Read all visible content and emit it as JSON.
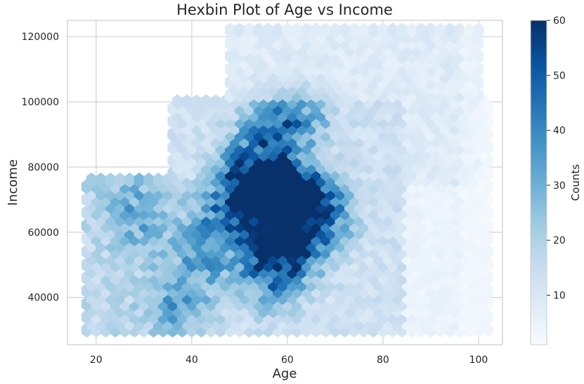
{
  "chart_data": {
    "type": "heatmap",
    "subtype": "hexbin",
    "title": "Hexbin Plot of Age vs Income",
    "xlabel": "Age",
    "ylabel": "Income",
    "xlim": [
      14,
      105
    ],
    "ylim": [
      25500,
      125000
    ],
    "xticks": [
      20,
      40,
      60,
      80,
      100
    ],
    "yticks": [
      40000,
      60000,
      80000,
      100000,
      120000
    ],
    "grid": true,
    "colormap": "Blues",
    "colorbar": {
      "label": "Counts",
      "range": [
        1,
        60
      ],
      "ticks": [
        10,
        20,
        30,
        40,
        50,
        60
      ]
    },
    "hex_grid": {
      "x_start": 18,
      "x_step": 2,
      "x_end": 102,
      "y_start": 30000,
      "y_step": 4000,
      "y_end": 122000
    },
    "density_regions": [
      {
        "x": [
          18,
          46
        ],
        "y": [
          30000,
          76000
        ],
        "base": 18,
        "note": "young, low-mid income band"
      },
      {
        "x": [
          36,
          84
        ],
        "y": [
          30000,
          100000
        ],
        "base": 14
      },
      {
        "x": [
          48,
          100
        ],
        "y": [
          76000,
          122000
        ],
        "base": 9
      },
      {
        "x": [
          80,
          102
        ],
        "y": [
          30000,
          100000
        ],
        "base": 5
      }
    ],
    "peaks": [
      {
        "x": 51,
        "y": 71000,
        "value": 60
      },
      {
        "x": 56,
        "y": 72000,
        "value": 58
      },
      {
        "x": 59,
        "y": 74000,
        "value": 60
      },
      {
        "x": 65,
        "y": 70000,
        "value": 58
      },
      {
        "x": 55,
        "y": 54000,
        "value": 52
      },
      {
        "x": 60,
        "y": 63000,
        "value": 50
      },
      {
        "x": 62,
        "y": 55000,
        "value": 46
      },
      {
        "x": 52,
        "y": 83000,
        "value": 40
      },
      {
        "x": 57,
        "y": 93000,
        "value": 38
      },
      {
        "x": 63,
        "y": 95000,
        "value": 35
      },
      {
        "x": 44,
        "y": 63000,
        "value": 34
      },
      {
        "x": 42,
        "y": 50000,
        "value": 34
      },
      {
        "x": 36,
        "y": 38000,
        "value": 34
      },
      {
        "x": 27,
        "y": 70000,
        "value": 30
      },
      {
        "x": 30,
        "y": 60000,
        "value": 28
      },
      {
        "x": 57,
        "y": 43000,
        "value": 30
      },
      {
        "x": 70,
        "y": 64000,
        "value": 26
      }
    ],
    "colors": {
      "grid": "#d6d6d6",
      "frame": "#cccccc",
      "low": "#f7fbff",
      "high": "#08306b"
    }
  }
}
